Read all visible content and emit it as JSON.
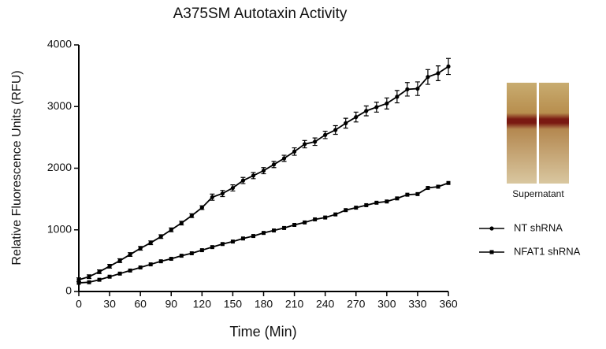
{
  "chart_data": {
    "type": "line",
    "title": "A375SM Autotaxin Activity",
    "x_label": "Time  (Min)",
    "y_label": "Relative Fluorescence Units  (RFU)",
    "x": [
      0,
      10,
      20,
      30,
      40,
      50,
      60,
      70,
      80,
      90,
      100,
      110,
      120,
      130,
      140,
      150,
      160,
      170,
      180,
      190,
      200,
      210,
      220,
      230,
      240,
      250,
      260,
      270,
      280,
      290,
      300,
      310,
      320,
      330,
      340,
      350,
      360
    ],
    "series": [
      {
        "name": "NT shRNA",
        "color": "#000000",
        "marker": "circle",
        "values": [
          190,
          240,
          320,
          410,
          500,
          600,
          700,
          790,
          890,
          1000,
          1110,
          1230,
          1360,
          1530,
          1590,
          1680,
          1800,
          1880,
          1960,
          2060,
          2160,
          2270,
          2390,
          2430,
          2540,
          2620,
          2730,
          2830,
          2930,
          2990,
          3050,
          3160,
          3280,
          3290,
          3480,
          3540,
          3650
        ],
        "errors": [
          30,
          30,
          30,
          30,
          30,
          30,
          30,
          30,
          30,
          30,
          30,
          30,
          30,
          50,
          50,
          50,
          50,
          50,
          50,
          50,
          50,
          60,
          60,
          60,
          60,
          70,
          80,
          80,
          80,
          80,
          90,
          100,
          110,
          110,
          120,
          120,
          130
        ]
      },
      {
        "name": "NFAT1 shRNA",
        "color": "#000000",
        "marker": "square",
        "values": [
          140,
          150,
          190,
          240,
          290,
          340,
          390,
          440,
          490,
          530,
          580,
          620,
          670,
          720,
          770,
          810,
          860,
          900,
          950,
          990,
          1030,
          1080,
          1120,
          1170,
          1200,
          1250,
          1320,
          1360,
          1400,
          1440,
          1460,
          1510,
          1570,
          1580,
          1680,
          1700,
          1760
        ]
      }
    ],
    "xlim": [
      0,
      360
    ],
    "xticks": [
      0,
      30,
      60,
      90,
      120,
      150,
      180,
      210,
      240,
      270,
      300,
      330,
      360
    ],
    "ylim": [
      0,
      4000
    ],
    "yticks": [
      0,
      1000,
      2000,
      3000,
      4000
    ],
    "inset_label": "Supernatant"
  }
}
